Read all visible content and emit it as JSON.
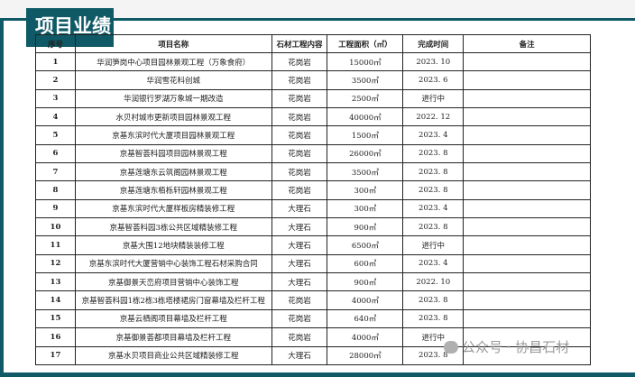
{
  "title": "项目业绩",
  "headers": [
    "序号",
    "项目名称",
    "石材工程内容",
    "工程面积（㎡）",
    "完成时间",
    "备注"
  ],
  "rows": [
    [
      "1",
      "华润笋岗中心项目园林景观工程（万象食府）",
      "花岗岩",
      "15000㎡",
      "2023. 10",
      ""
    ],
    [
      "2",
      "华润雪花科创城",
      "花岗岩",
      "3500㎡",
      "2023. 6",
      ""
    ],
    [
      "3",
      "华润银行罗湖万象城一期改造",
      "花岗岩",
      "2500㎡",
      "进行中",
      ""
    ],
    [
      "4",
      "水贝村城市更新项目园林景观工程",
      "花岗岩",
      "40000㎡",
      "2022. 12",
      ""
    ],
    [
      "5",
      "京基东滨时代大厦项目园林景观工程",
      "花岗岩",
      "1500㎡",
      "2023. 4",
      ""
    ],
    [
      "6",
      "京基智荟科园项目园林景观工程",
      "花岗岩",
      "26000㎡",
      "2023. 8",
      ""
    ],
    [
      "7",
      "京基莲塘东云筑阁园林景观工程",
      "花岗岩",
      "3500㎡",
      "2023. 8",
      ""
    ],
    [
      "8",
      "京基莲塘东栢栎轩园林景观工程",
      "花岗岩",
      "300㎡",
      "2023. 8",
      ""
    ],
    [
      "9",
      "京基东滨时代大厦样板房精装修工程",
      "大理石",
      "300㎡",
      "2023. 4",
      ""
    ],
    [
      "10",
      "京基智荟科园3栋公共区域精装修工程",
      "大理石",
      "900㎡",
      "2023. 8",
      ""
    ],
    [
      "11",
      "京基大围12地块精装装修工程",
      "大理石",
      "6500㎡",
      "进行中",
      ""
    ],
    [
      "12",
      "京基东滨时代大厦营销中心装饰工程石材采购合同",
      "大理石",
      "600㎡",
      "2023. 4",
      ""
    ],
    [
      "13",
      "京基御景天峦府项目营销中心装饰工程",
      "大理石",
      "900㎡",
      "2022. 10",
      ""
    ],
    [
      "14",
      "京基智荟科园1栋2栋3栋塔楼裙房门窗幕墙及栏杆工程",
      "花岗岩",
      "4000㎡",
      "2023. 8",
      ""
    ],
    [
      "15",
      "京基云栖阁项目幕墙及栏杆工程",
      "花岗岩",
      "640㎡",
      "2023. 8",
      ""
    ],
    [
      "16",
      "京基御景荟都项目幕墙及栏杆工程",
      "花岗岩",
      "4000㎡",
      "进行中",
      ""
    ],
    [
      "17",
      "京基水贝项目商业公共区域精装修工程",
      "大理石",
      "28000㎡",
      "2023. 8",
      ""
    ]
  ],
  "watermark": "公众号 · 协昌石材",
  "colors": {
    "accent": "#0f5a66"
  }
}
